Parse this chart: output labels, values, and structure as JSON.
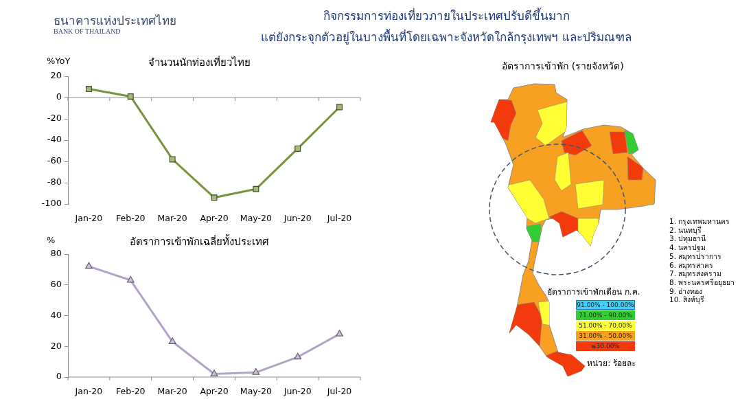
{
  "chart_data": [
    {
      "type": "other",
      "title": "กิจกรรมการท่องเที่ยวภายในประเทศปรับดีขึ้นมาก",
      "subtitle": "แต่ยังกระจุกตัวอยู่ในบางพื้นที่โดยเฉพาะจังหวัดใกล้กรุงเทพฯ และปริมณฑล",
      "annotations": [
        "ธนาคารแห่งประเทศไทย",
        "BANK OF THAILAND"
      ]
    },
    {
      "type": "line",
      "title": "จำนวนนักท่องเที่ยวไทย",
      "ylabel": "%YoY",
      "categories": [
        "Jan-20",
        "Feb-20",
        "Mar-20",
        "Apr-20",
        "May-20",
        "Jun-20",
        "Jul-20"
      ],
      "values": [
        8,
        1,
        -58,
        -94,
        -86,
        -48,
        -9
      ],
      "color": "#77933c",
      "marker": "square",
      "ylim": [
        -100,
        20
      ],
      "yticks": [
        -100,
        -80,
        -60,
        -40,
        -20,
        0,
        20
      ]
    },
    {
      "type": "line",
      "title": "อัตราการเข้าพักเฉลี่ยทั้งประเทศ",
      "ylabel": "%",
      "categories": [
        "Jan-20",
        "Feb-20",
        "Mar-20",
        "Apr-20",
        "May-20",
        "Jun-20",
        "Jul-20"
      ],
      "values": [
        72,
        63,
        23,
        2,
        3,
        13,
        28
      ],
      "color": "#b3a2c7",
      "marker": "triangle",
      "ylim": [
        0,
        80
      ],
      "yticks": [
        0,
        20,
        40,
        60,
        80
      ]
    },
    {
      "type": "other",
      "title": "อัตราการเข้าพัก (รายจังหวัด)",
      "annotations": [
        "อัตราการเข้าพักเดือน ก.ค.",
        "91.00% - 100.00%",
        "71.00% - 90.00%",
        "51.00% - 70.00%",
        "31.00% - 50.00%",
        "≤30.00%",
        "หน่วย: ร้อยละ",
        "1. กรุงเทพมหานคร",
        "2. นนทบุรี",
        "3. ปทุมธานี",
        "4. นครปฐม",
        "5. สมุทรปราการ",
        "6. สมุทรสาคร",
        "7. สมุทรสงคราม",
        "8. พระนครศรีอยุธยา",
        "9. อ่างทอง",
        "10. สิงห์บุรี"
      ]
    }
  ]
}
